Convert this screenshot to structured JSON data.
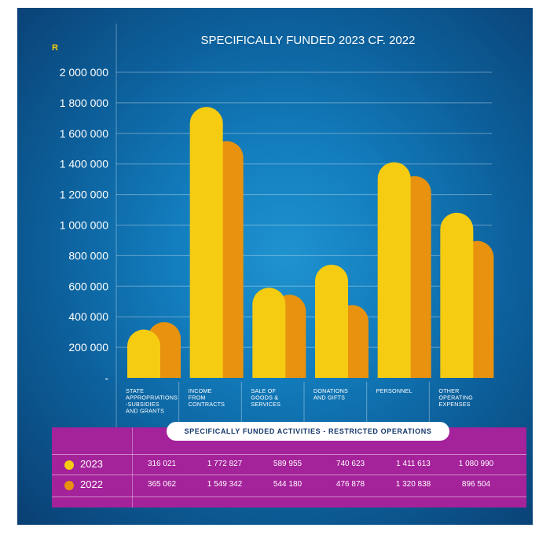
{
  "chart_data": {
    "type": "bar",
    "title": "SPECIFICALLY FUNDED 2023 CF. 2022",
    "y_unit": "R",
    "ylim": [
      0,
      2000000
    ],
    "y_ticks": [
      "2 000 000",
      "1 800 000",
      "1 600 000",
      "1 400 000",
      "1 200 000",
      "1 000 000",
      "800 000",
      "600 000",
      "400 000",
      "200 000",
      "-"
    ],
    "categories": [
      [
        "STATE",
        "APPROPRIATIONS",
        "-SUBSIDIES",
        "AND GRANTS"
      ],
      [
        "INCOME",
        "FROM",
        "CONTRACTS"
      ],
      [
        "SALE OF",
        "GOODS &",
        "SERVICES"
      ],
      [
        "DONATIONS",
        "AND GIFTS"
      ],
      [
        "PERSONNEL"
      ],
      [
        "OTHER",
        "OPERATING",
        "EXPENSES"
      ]
    ],
    "series": [
      {
        "name": "2023",
        "color": "#f5cc12",
        "values": [
          316021,
          1772827,
          589955,
          740623,
          1411613,
          1080990
        ]
      },
      {
        "name": "2022",
        "color": "#e8920f",
        "values": [
          365062,
          1549342,
          544180,
          476878,
          1320838,
          896504
        ]
      }
    ],
    "grid": true
  },
  "table": {
    "header": "SPECIFICALLY FUNDED ACTIVITIES - RESTRICTED OPERATIONS",
    "rows": [
      {
        "year": "2023",
        "color": "#f5cc12",
        "cells": [
          "316 021",
          "1 772 827",
          "589 955",
          "740 623",
          "1 411 613",
          "1 080 990"
        ]
      },
      {
        "year": "2022",
        "color": "#e8920f",
        "cells": [
          "365 062",
          "1 549 342",
          "544 180",
          "476 878",
          "1 320 838",
          "896 504"
        ]
      }
    ]
  }
}
